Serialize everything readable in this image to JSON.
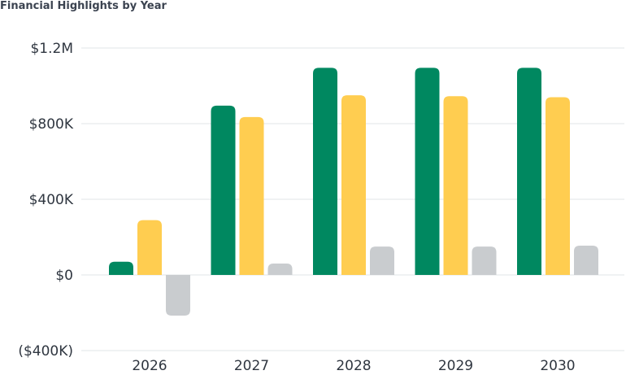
{
  "chart_data": {
    "type": "bar",
    "title": "Financial Highlights by Year",
    "categories": [
      "2026",
      "2027",
      "2028",
      "2029",
      "2030"
    ],
    "series": [
      {
        "color": "#008860",
        "values": [
          70000,
          895000,
          1095000,
          1095000,
          1095000
        ]
      },
      {
        "color": "#FFCD50",
        "values": [
          290000,
          835000,
          950000,
          945000,
          940000
        ]
      },
      {
        "color": "#C9CCCF",
        "values": [
          -215000,
          60000,
          150000,
          150000,
          155000
        ]
      }
    ],
    "yticks": [
      {
        "value": 1200000,
        "label": "$1.2M"
      },
      {
        "value": 800000,
        "label": "$800K"
      },
      {
        "value": 400000,
        "label": "$400K"
      },
      {
        "value": 0,
        "label": "$0"
      },
      {
        "value": -400000,
        "label": "($400K)"
      }
    ],
    "ylim": [
      -400000,
      1200000
    ],
    "grid": true,
    "legend": "none"
  }
}
